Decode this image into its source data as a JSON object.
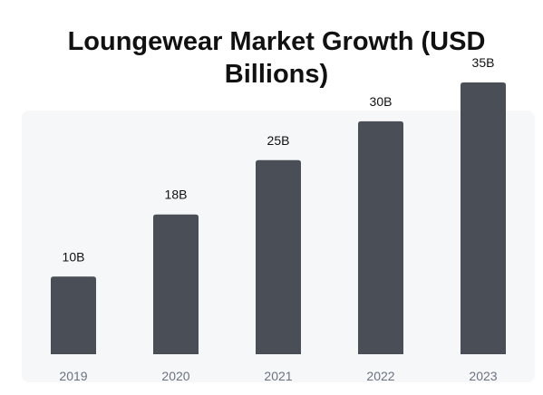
{
  "chart_data": {
    "type": "bar",
    "title": "Loungewear Market Growth (USD Billions)",
    "categories": [
      "2019",
      "2020",
      "2021",
      "2022",
      "2023"
    ],
    "values": [
      10,
      18,
      25,
      30,
      35
    ],
    "value_labels": [
      "10B",
      "18B",
      "25B",
      "30B",
      "35B"
    ],
    "ylim": [
      0,
      35
    ],
    "grid": false,
    "legend": "none",
    "colors": {
      "bar": "#4a4f57",
      "plot_background": "#f6f7f9",
      "value_label": "#111111",
      "tick_label": "#6b7280"
    }
  }
}
